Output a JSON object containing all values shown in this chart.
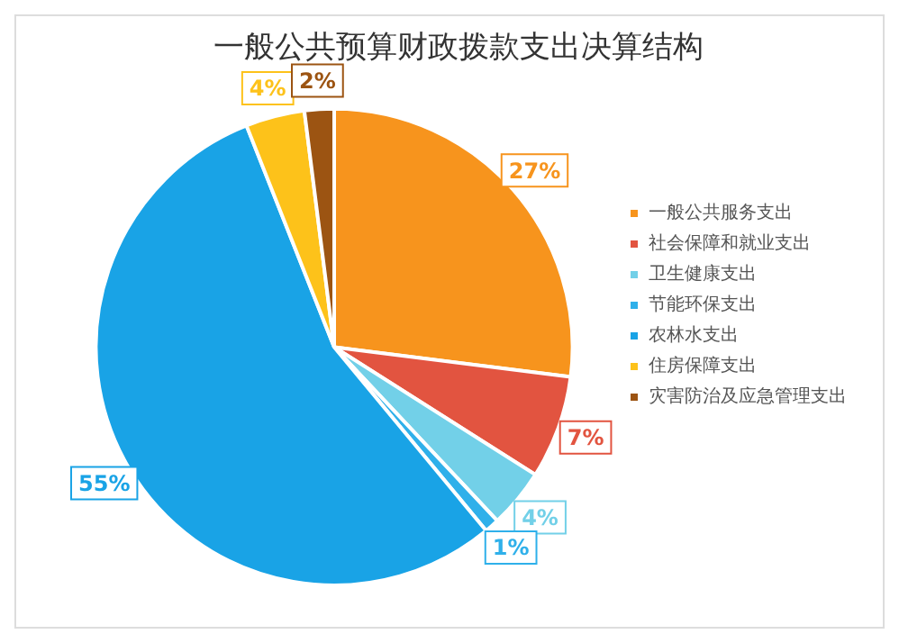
{
  "chart_data": {
    "type": "pie",
    "title": "一般公共预算财政拨款支出决算结构",
    "categories": [
      "一般公共服务支出",
      "社会保障和就业支出",
      "卫生健康支出",
      "节能环保支出",
      "农林水支出",
      "住房保障支出",
      "灾害防治及应急管理支出"
    ],
    "values": [
      27,
      7,
      4,
      1,
      55,
      4,
      2
    ],
    "value_labels": [
      "27%",
      "7%",
      "4%",
      "1%",
      "55%",
      "4%",
      "2%"
    ],
    "colors": [
      "#f7941d",
      "#e25440",
      "#72d0e8",
      "#2fb0ea",
      "#19a3e6",
      "#fdc21a",
      "#9c5412"
    ],
    "legend": "right"
  }
}
